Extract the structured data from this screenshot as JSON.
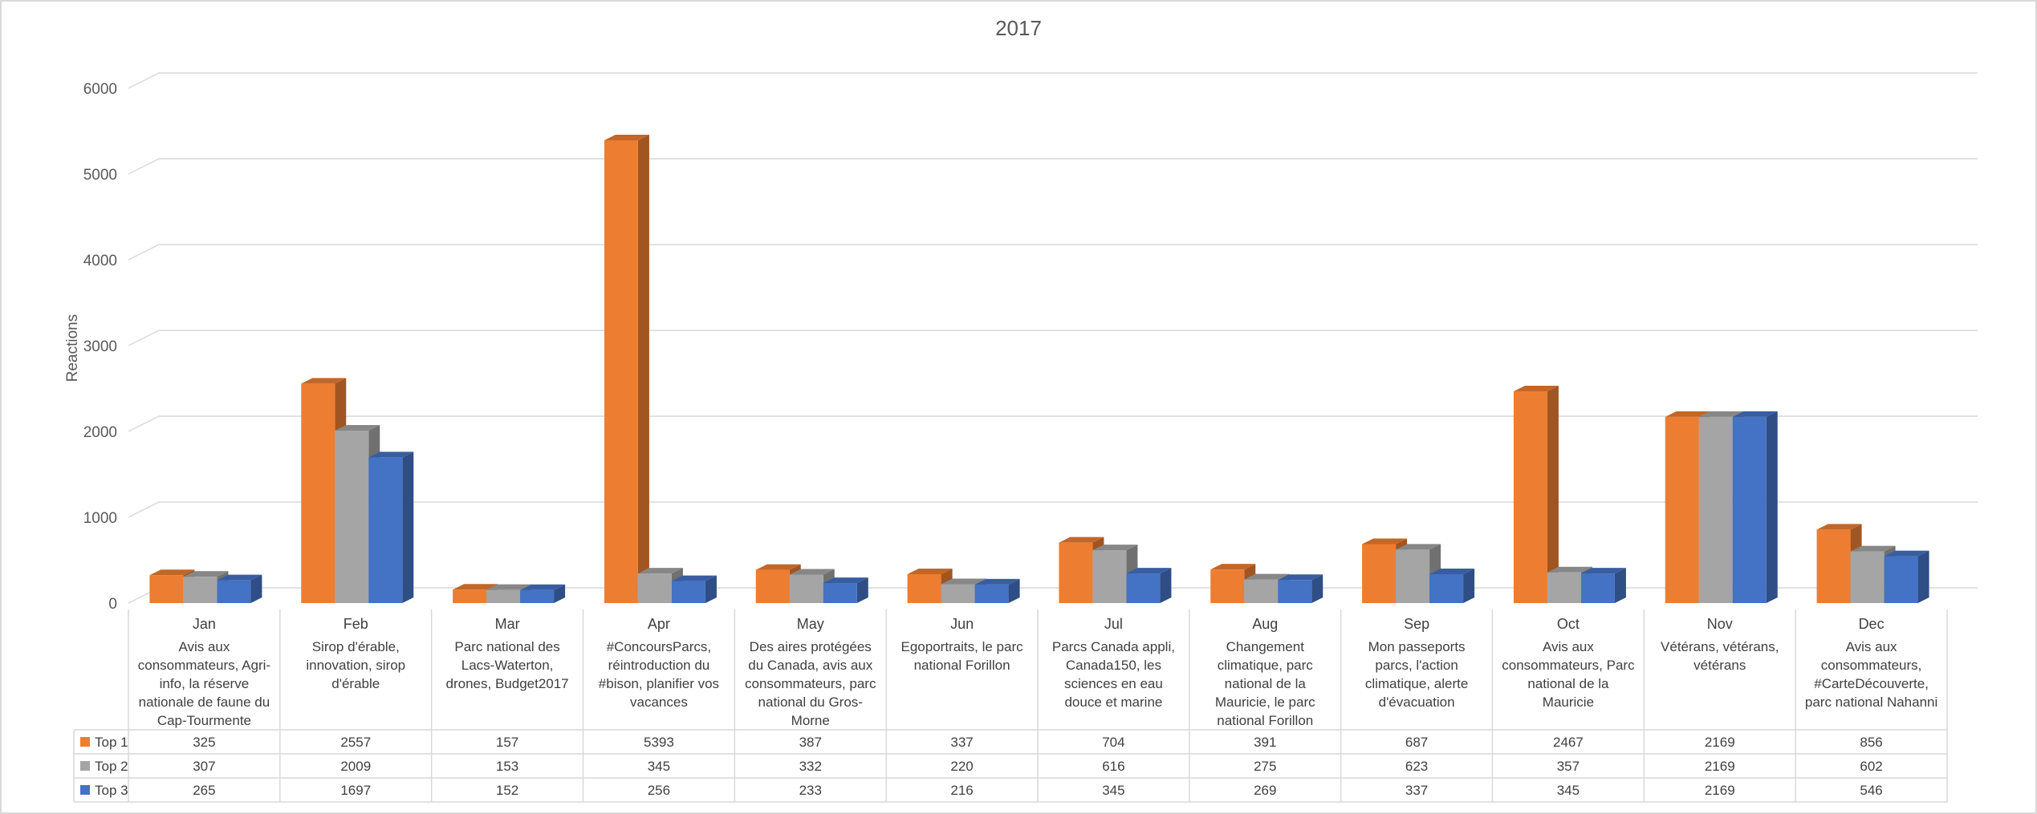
{
  "chart_data": {
    "type": "bar",
    "title": "2017",
    "ylabel": "Reactions",
    "ylim": [
      0,
      6000
    ],
    "yticks": [
      0,
      1000,
      2000,
      3000,
      4000,
      5000,
      6000
    ],
    "grid": true,
    "legend": "table",
    "categories": [
      "Jan",
      "Feb",
      "Mar",
      "Apr",
      "May",
      "Jun",
      "Jul",
      "Aug",
      "Sep",
      "Oct",
      "Nov",
      "Dec"
    ],
    "topics": [
      [
        "Avis aux",
        "consommateurs, Agri-",
        "info, la réserve",
        "nationale de faune du",
        "Cap-Tourmente"
      ],
      [
        "Sirop d'érable,",
        "innovation, sirop",
        "d'érable"
      ],
      [
        "Parc national des",
        "Lacs-Waterton,",
        "drones, Budget2017"
      ],
      [
        "#ConcoursParcs,",
        "réintroduction du",
        "#bison, planifier vos",
        "vacances"
      ],
      [
        "Des aires protégées",
        "du Canada, avis aux",
        "consommateurs, parc",
        "national du Gros-",
        "Morne"
      ],
      [
        "Egoportraits, le parc",
        "national Forillon"
      ],
      [
        "Parcs Canada appli,",
        "Canada150,  les",
        "sciences en eau",
        "douce et marine"
      ],
      [
        "Changement",
        "climatique, parc",
        "national de la",
        "Mauricie, le parc",
        "national Forillon"
      ],
      [
        "Mon passeports",
        "parcs, l'action",
        "climatique, alerte",
        "d'évacuation"
      ],
      [
        "Avis aux",
        "consommateurs, Parc",
        "national de la",
        "Mauricie"
      ],
      [
        "Vétérans, vétérans,",
        "vétérans"
      ],
      [
        "Avis aux",
        "consommateurs,",
        "#CarteDécouverte,",
        "parc national Nahanni"
      ]
    ],
    "series": [
      {
        "name": "Top 1",
        "color": "#ed7d31",
        "values": [
          325,
          2557,
          157,
          5393,
          387,
          337,
          704,
          391,
          687,
          2467,
          2169,
          856
        ]
      },
      {
        "name": "Top 2",
        "color": "#a5a5a5",
        "values": [
          307,
          2009,
          153,
          345,
          332,
          220,
          616,
          275,
          623,
          357,
          2169,
          602
        ]
      },
      {
        "name": "Top 3",
        "color": "#4472c4",
        "values": [
          265,
          1697,
          152,
          256,
          233,
          216,
          345,
          269,
          337,
          345,
          2169,
          546
        ]
      }
    ]
  }
}
